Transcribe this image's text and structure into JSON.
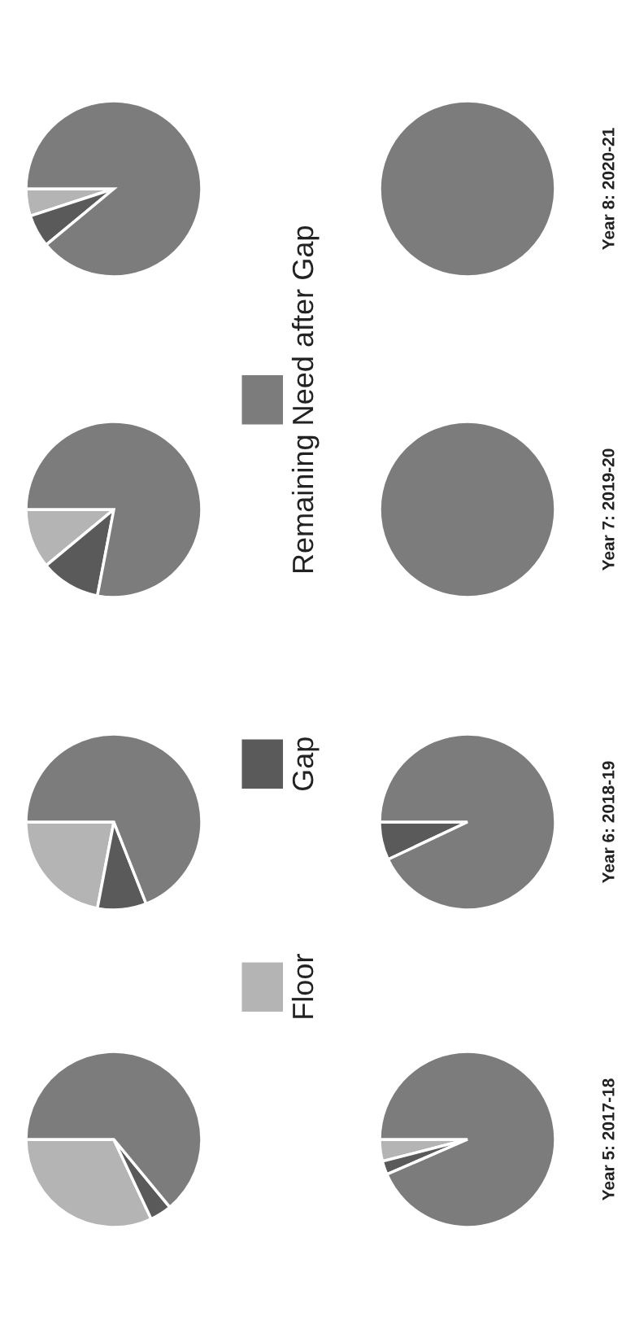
{
  "chart_data": [
    {
      "type": "pie",
      "categories": [
        "Floor",
        "Gap",
        "Remaining Need after Gap"
      ],
      "values": [
        32,
        4,
        64
      ],
      "colors": [
        "#b4b4b4",
        "#5a5a5a",
        "#7c7c7c"
      ],
      "legend": "right"
    },
    {
      "type": "pie",
      "values": [
        22,
        9,
        69
      ],
      "colors": [
        "#b4b4b4",
        "#5a5a5a",
        "#7c7c7c"
      ]
    },
    {
      "type": "pie",
      "values": [
        11,
        11,
        78
      ],
      "colors": [
        "#b4b4b4",
        "#5a5a5a",
        "#7c7c7c"
      ]
    },
    {
      "type": "pie",
      "values": [
        5,
        6,
        89
      ],
      "colors": [
        "#b4b4b4",
        "#5a5a5a",
        "#7c7c7c"
      ]
    },
    {
      "type": "pie",
      "title": "Year 5: 2017-18",
      "values": [
        4,
        2.5,
        93.5
      ],
      "colors": [
        "#b4b4b4",
        "#5a5a5a",
        "#7c7c7c"
      ]
    },
    {
      "type": "pie",
      "title": "Year 6: 2018-19",
      "values": [
        0,
        7,
        93
      ],
      "colors": [
        "#b4b4b4",
        "#5a5a5a",
        "#7c7c7c"
      ]
    },
    {
      "type": "pie",
      "title": "Year 7: 2019-20",
      "values": [
        0,
        0,
        100
      ],
      "colors": [
        "#b4b4b4",
        "#5a5a5a",
        "#7c7c7c"
      ]
    },
    {
      "type": "pie",
      "title": "Year 8: 2020-21",
      "values": [
        0,
        0,
        100
      ],
      "colors": [
        "#b4b4b4",
        "#5a5a5a",
        "#7c7c7c"
      ]
    }
  ]
}
